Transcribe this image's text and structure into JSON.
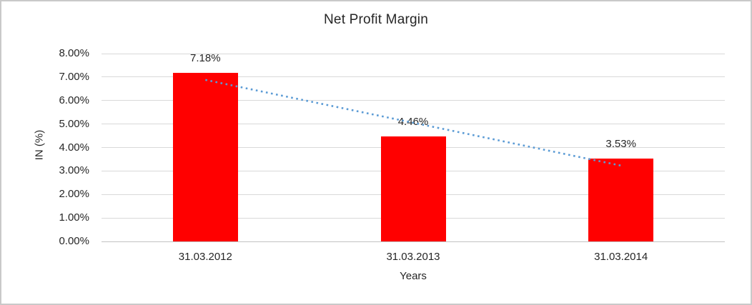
{
  "chart_data": {
    "type": "bar",
    "title": "Net Profit Margin",
    "categories": [
      "31.03.2012",
      "31.03.2013",
      "31.03.2014"
    ],
    "values": [
      7.18,
      4.46,
      3.53
    ],
    "data_labels": [
      "7.18%",
      "4.46%",
      "3.53%"
    ],
    "xlabel": "Years",
    "ylabel": "IN (%)",
    "ylim": [
      0,
      8
    ],
    "ytick_step": 1,
    "ytick_labels_bottom_to_top": [
      "0.00%",
      "1.00%",
      "2.00%",
      "3.00%",
      "4.00%",
      "5.00%",
      "6.00%",
      "7.00%",
      "8.00%"
    ],
    "grid": true,
    "legend": "none",
    "bar_color": "#FF0000",
    "trendline": {
      "type": "linear",
      "style": "dotted",
      "color": "#5B9BD5",
      "start_value": 6.88,
      "end_value": 3.23
    },
    "colors": {
      "grid": "#D9D9D9",
      "axis_line": "#C3C3C3",
      "text": "#262626",
      "frame_border": "#C9C9C9",
      "background": "#FFFFFF"
    }
  }
}
